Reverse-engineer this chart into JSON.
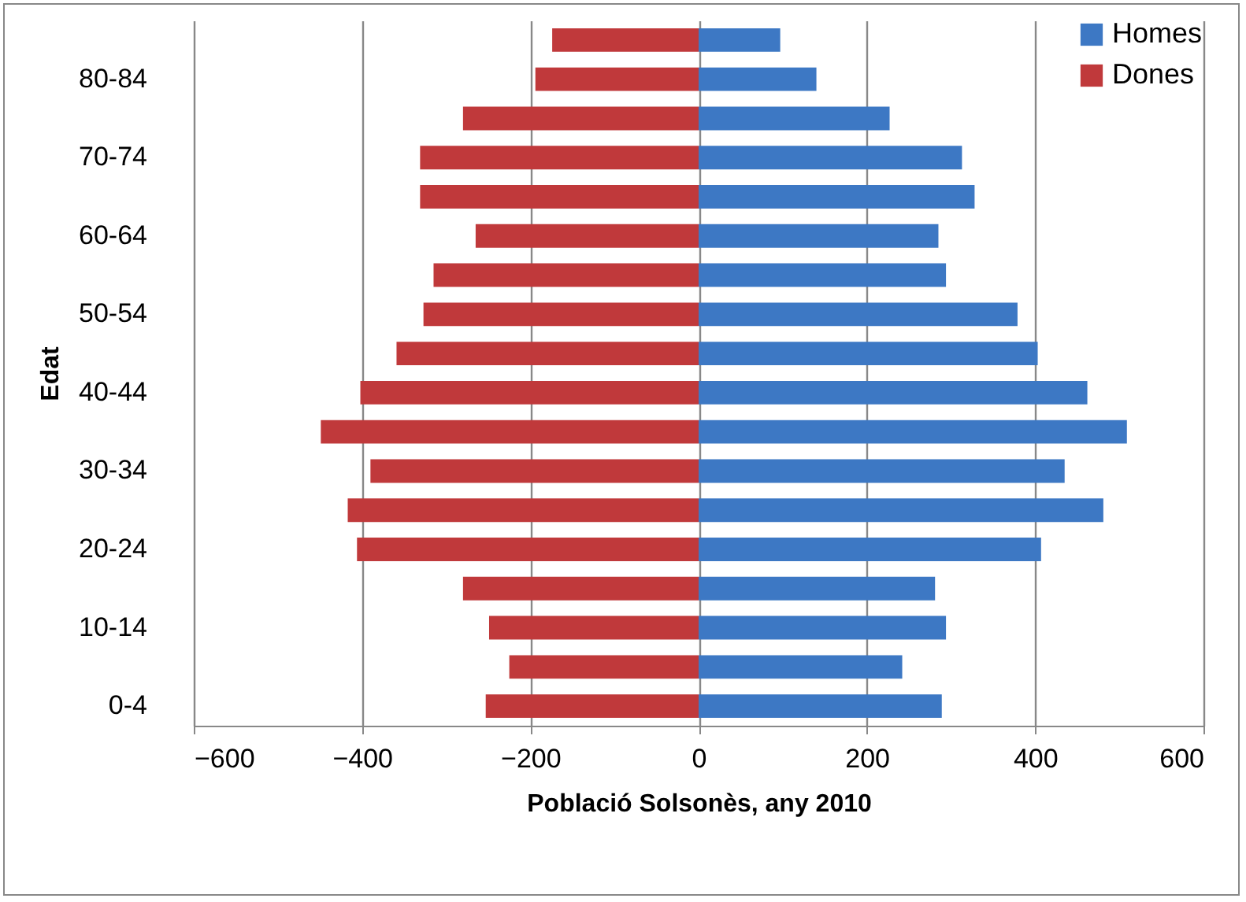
{
  "chart_data": {
    "type": "bar",
    "orientation": "horizontal",
    "stacked": true,
    "xlabel": "Població Solsonès, any 2010",
    "ylabel": "Edat",
    "categories": [
      null,
      "80-84",
      null,
      "70-74",
      null,
      "60-64",
      null,
      "50-54",
      null,
      "40-44",
      null,
      "30-34",
      null,
      "20-24",
      null,
      "10-14",
      null,
      "0-4"
    ],
    "series": [
      {
        "name": "Homes",
        "color": "#3d78c4",
        "values": [
          97,
          140,
          227,
          313,
          328,
          285,
          294,
          379,
          403,
          462,
          509,
          435,
          481,
          407,
          281,
          294,
          242,
          289
        ]
      },
      {
        "name": "Dones",
        "color": "#c0393b",
        "values": [
          -174,
          -194,
          -280,
          -331,
          -331,
          -265,
          -315,
          -327,
          -359,
          -402,
          -449,
          -390,
          -417,
          -406,
          -280,
          -249,
          -225,
          -253
        ]
      }
    ],
    "xlim": [
      -600,
      600
    ],
    "xticks": [
      -600,
      -400,
      -200,
      0,
      200,
      400,
      600
    ],
    "grid": "x",
    "legend": "top right"
  }
}
